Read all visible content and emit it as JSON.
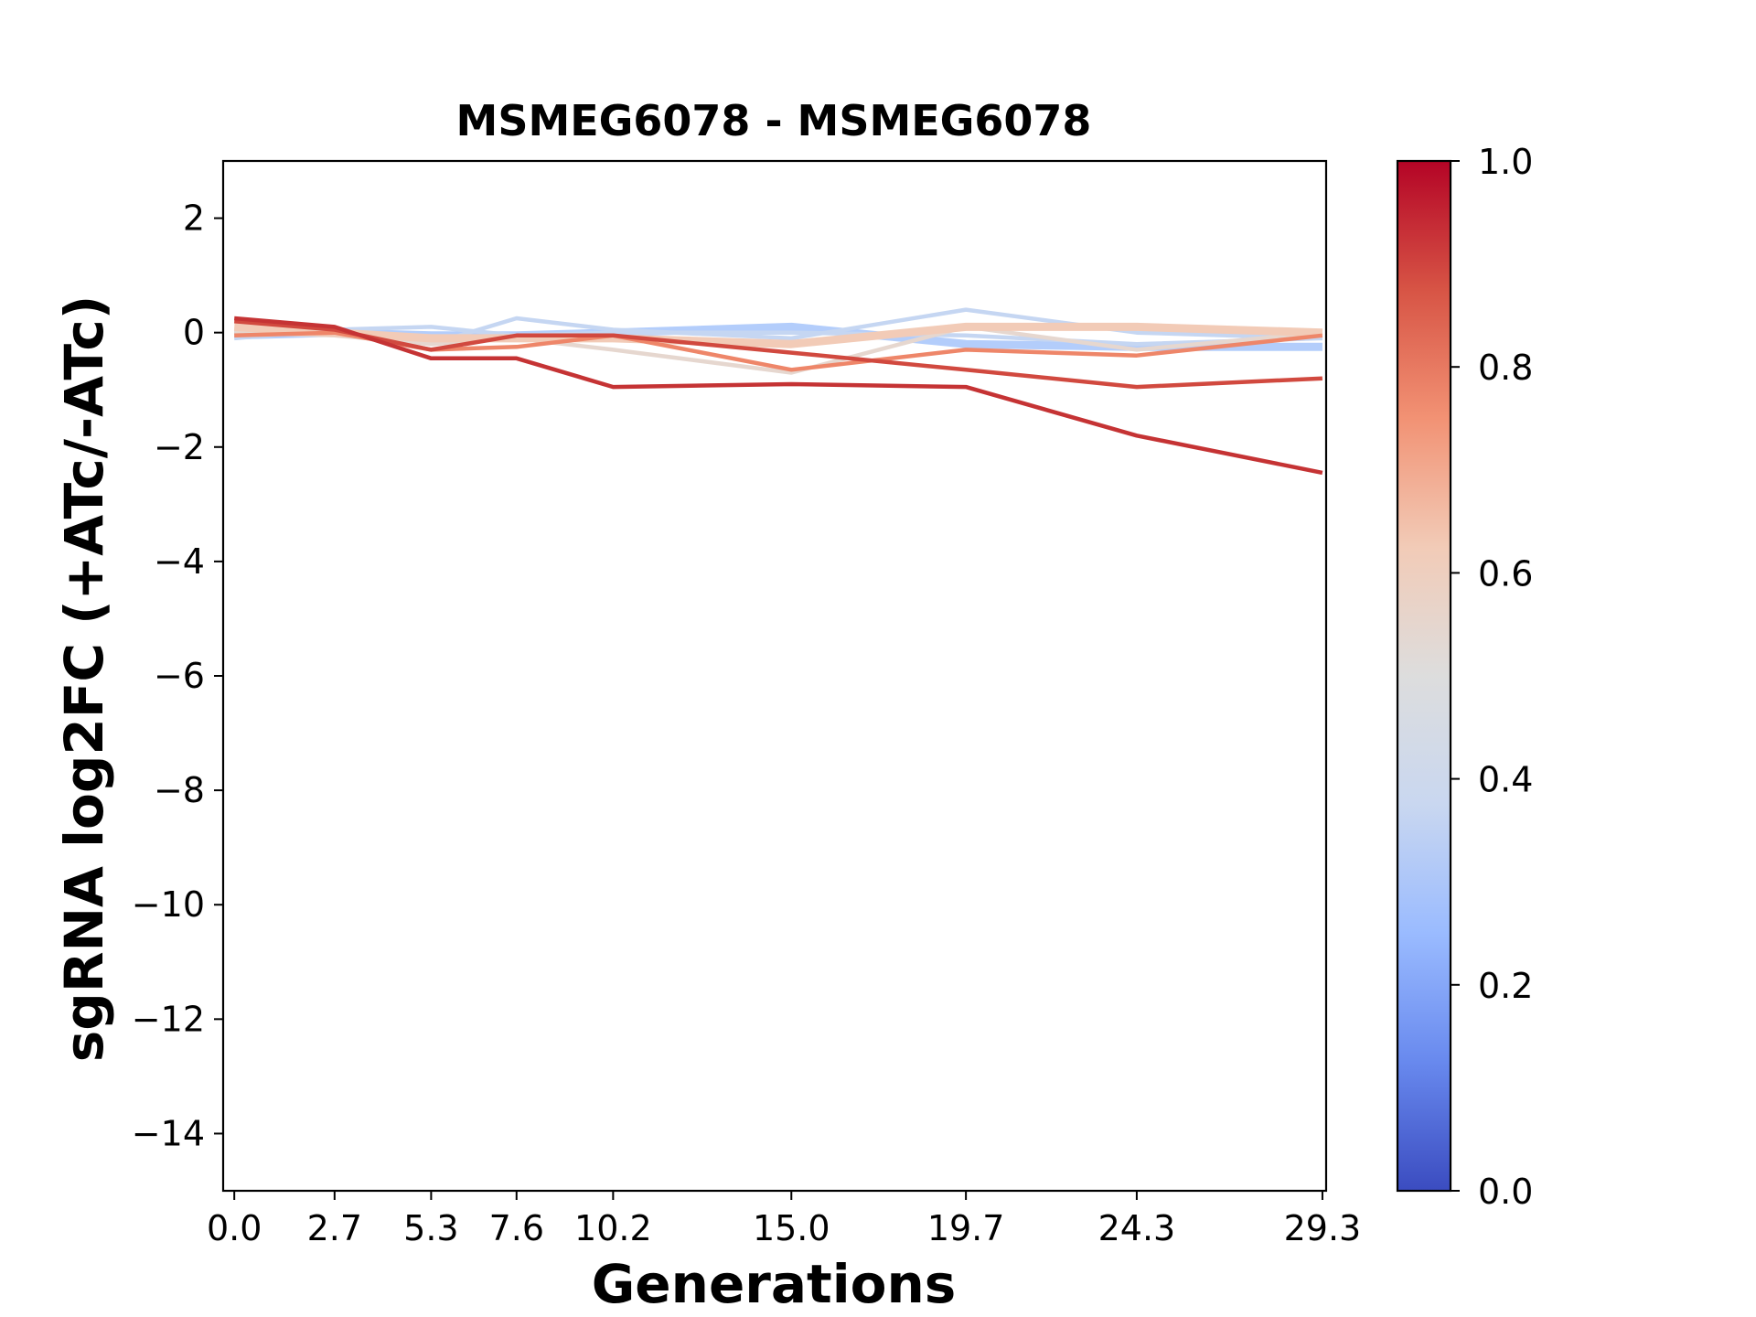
{
  "chart_data": {
    "type": "line",
    "title": "MSMEG6078 - MSMEG6078",
    "xlabel": "Generations",
    "ylabel": "sgRNA log2FC (+ATc/-ATc)",
    "x": [
      0.0,
      2.7,
      5.3,
      7.6,
      10.2,
      15.0,
      19.7,
      24.3,
      29.3
    ],
    "xtick_labels": [
      "0.0",
      "2.7",
      "5.3",
      "7.6",
      "10.2",
      "15.0",
      "19.7",
      "24.3",
      "29.3"
    ],
    "xlim": [
      -0.3,
      29.4
    ],
    "ylim": [
      -15,
      3
    ],
    "yticks": [
      2,
      0,
      -2,
      -4,
      -6,
      -8,
      -10,
      -12,
      -14
    ],
    "ytick_labels": [
      "2",
      "0",
      "−2",
      "−4",
      "−6",
      "−8",
      "−10",
      "−12",
      "−14"
    ],
    "grid": false,
    "legend": "none",
    "series": [
      {
        "color": "#b3cdfb",
        "thick": true,
        "values": [
          -0.05,
          0.0,
          -0.05,
          -0.05,
          0.0,
          0.1,
          -0.2,
          -0.25,
          -0.25
        ]
      },
      {
        "color": "#c5d6f2",
        "values": [
          -0.1,
          0.05,
          0.1,
          -0.05,
          0.0,
          0.0,
          -0.05,
          -0.2,
          -0.1
        ]
      },
      {
        "color": "#c5d6f2",
        "values": [
          0.0,
          0.0,
          -0.2,
          0.25,
          0.05,
          -0.1,
          0.4,
          0.0,
          -0.1
        ]
      },
      {
        "color": "#e6d7cf",
        "values": [
          0.0,
          -0.05,
          -0.2,
          -0.1,
          -0.3,
          -0.7,
          0.1,
          -0.3,
          0.0
        ]
      },
      {
        "color": "#f2cbb7",
        "thick": true,
        "values": [
          0.1,
          0.0,
          -0.1,
          -0.1,
          -0.1,
          -0.2,
          0.1,
          0.1,
          0.0
        ]
      },
      {
        "color": "#ee8669",
        "values": [
          -0.05,
          0.0,
          -0.3,
          -0.25,
          -0.05,
          -0.65,
          -0.3,
          -0.4,
          -0.05
        ]
      },
      {
        "color": "#d1493f",
        "values": [
          0.2,
          0.05,
          -0.3,
          -0.05,
          -0.05,
          -0.35,
          -0.65,
          -0.95,
          -0.8
        ]
      },
      {
        "color": "#c53334",
        "values": [
          0.25,
          0.1,
          -0.45,
          -0.45,
          -0.95,
          -0.9,
          -0.95,
          -1.8,
          -2.45
        ]
      }
    ],
    "colorbar": {
      "range": [
        0.0,
        1.0
      ],
      "ticks": [
        0.0,
        0.2,
        0.4,
        0.6,
        0.8,
        1.0
      ],
      "tick_labels": [
        "0.0",
        "0.2",
        "0.4",
        "0.6",
        "0.8",
        "1.0"
      ],
      "colormap": "coolwarm",
      "stops": [
        "#3b4cc0",
        "#6889ee",
        "#9abbff",
        "#c9d7f0",
        "#dddddd",
        "#f2cbb7",
        "#f29274",
        "#d75445",
        "#b40426"
      ]
    }
  }
}
